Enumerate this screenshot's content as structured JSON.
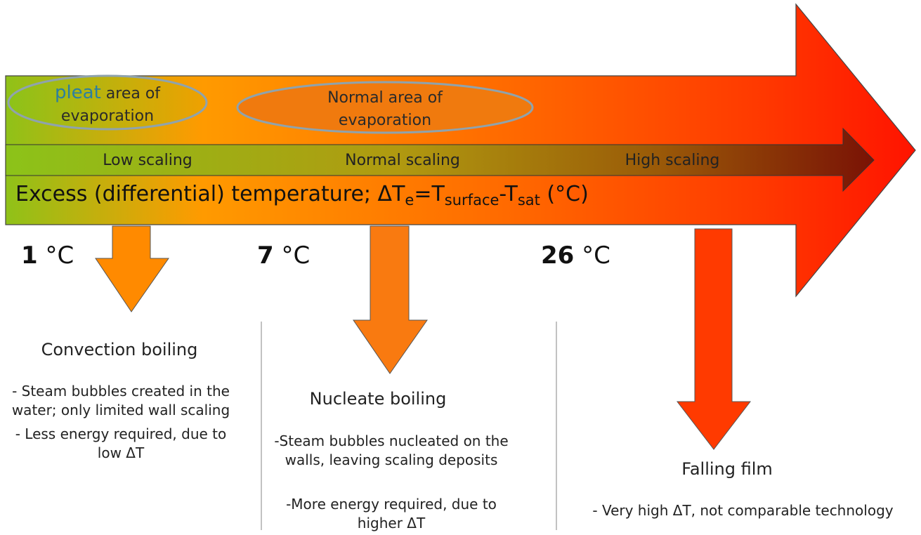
{
  "ovals": {
    "pleat": {
      "brand": "pleat",
      "line1_rest": " area of",
      "line2": "evaporation"
    },
    "normal": {
      "line1": "Normal area of",
      "line2": "evaporation"
    }
  },
  "scaling": [
    "Low scaling",
    "Normal scaling",
    "High scaling"
  ],
  "excess": {
    "prefix": "Excess (differential) temperature; ΔT",
    "sub_e": "e",
    "eq": "=T",
    "sub_surface": "surface",
    "dash": "-T",
    "sub_sat": "sat",
    "unit": " (°C)"
  },
  "temperatures": [
    {
      "value": "1",
      "unit": " °C"
    },
    {
      "value": "7",
      "unit": " °C"
    },
    {
      "value": "26",
      "unit": " °C"
    }
  ],
  "regimes": [
    {
      "title": "Convection boiling",
      "points": [
        "- Steam bubbles created in the water; only limited wall scaling",
        "-  Less energy required, due to low ΔT"
      ]
    },
    {
      "title": "Nucleate boiling",
      "points": [
        "-Steam bubbles nucleated on the walls, leaving scaling deposits",
        "-More energy required, due to higher ΔT"
      ]
    },
    {
      "title": "Falling film",
      "points": [
        "- Very high ΔT, not comparable technology"
      ]
    }
  ],
  "colors": {
    "green": "#8cc319",
    "orange": "#ff9a00",
    "red": "#ff1a00",
    "dark_red": "#7a1205",
    "oval_stroke": "#8fa3ad",
    "divider": "#9a9a9a"
  }
}
